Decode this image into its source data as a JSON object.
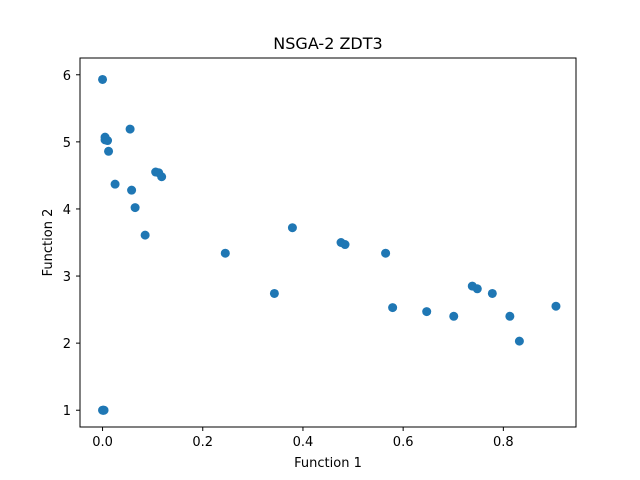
{
  "chart_data": {
    "type": "scatter",
    "title": "NSGA-2 ZDT3",
    "xlabel": "Function 1",
    "ylabel": "Function 2",
    "xlim": [
      -0.045,
      0.945
    ],
    "ylim": [
      0.75,
      6.25
    ],
    "xticks": [
      0.0,
      0.2,
      0.4,
      0.6,
      0.8
    ],
    "xtick_labels": [
      "0.0",
      "0.2",
      "0.4",
      "0.6",
      "0.8"
    ],
    "yticks": [
      1,
      2,
      3,
      4,
      5,
      6
    ],
    "ytick_labels": [
      "1",
      "2",
      "3",
      "4",
      "5",
      "6"
    ],
    "grid": false,
    "color": "#1f77b4",
    "series": [
      {
        "points": [
          [
            0.0,
            5.93
          ],
          [
            0.005,
            5.07
          ],
          [
            0.005,
            5.03
          ],
          [
            0.01,
            5.02
          ],
          [
            0.012,
            4.86
          ],
          [
            0.055,
            5.19
          ],
          [
            0.025,
            4.37
          ],
          [
            0.058,
            4.28
          ],
          [
            0.065,
            4.02
          ],
          [
            0.085,
            3.61
          ],
          [
            0.106,
            4.55
          ],
          [
            0.112,
            4.54
          ],
          [
            0.118,
            4.48
          ],
          [
            0.245,
            3.34
          ],
          [
            0.343,
            2.74
          ],
          [
            0.379,
            3.72
          ],
          [
            0.476,
            3.5
          ],
          [
            0.484,
            3.47
          ],
          [
            0.565,
            3.34
          ],
          [
            0.579,
            2.53
          ],
          [
            0.647,
            2.47
          ],
          [
            0.701,
            2.4
          ],
          [
            0.738,
            2.85
          ],
          [
            0.748,
            2.81
          ],
          [
            0.778,
            2.74
          ],
          [
            0.813,
            2.4
          ],
          [
            0.832,
            2.03
          ],
          [
            0.905,
            2.55
          ],
          [
            0.0,
            1.0
          ],
          [
            0.002,
            1.0
          ],
          [
            0.003,
            1.0
          ],
          [
            0.001,
            1.0
          ]
        ]
      }
    ]
  }
}
